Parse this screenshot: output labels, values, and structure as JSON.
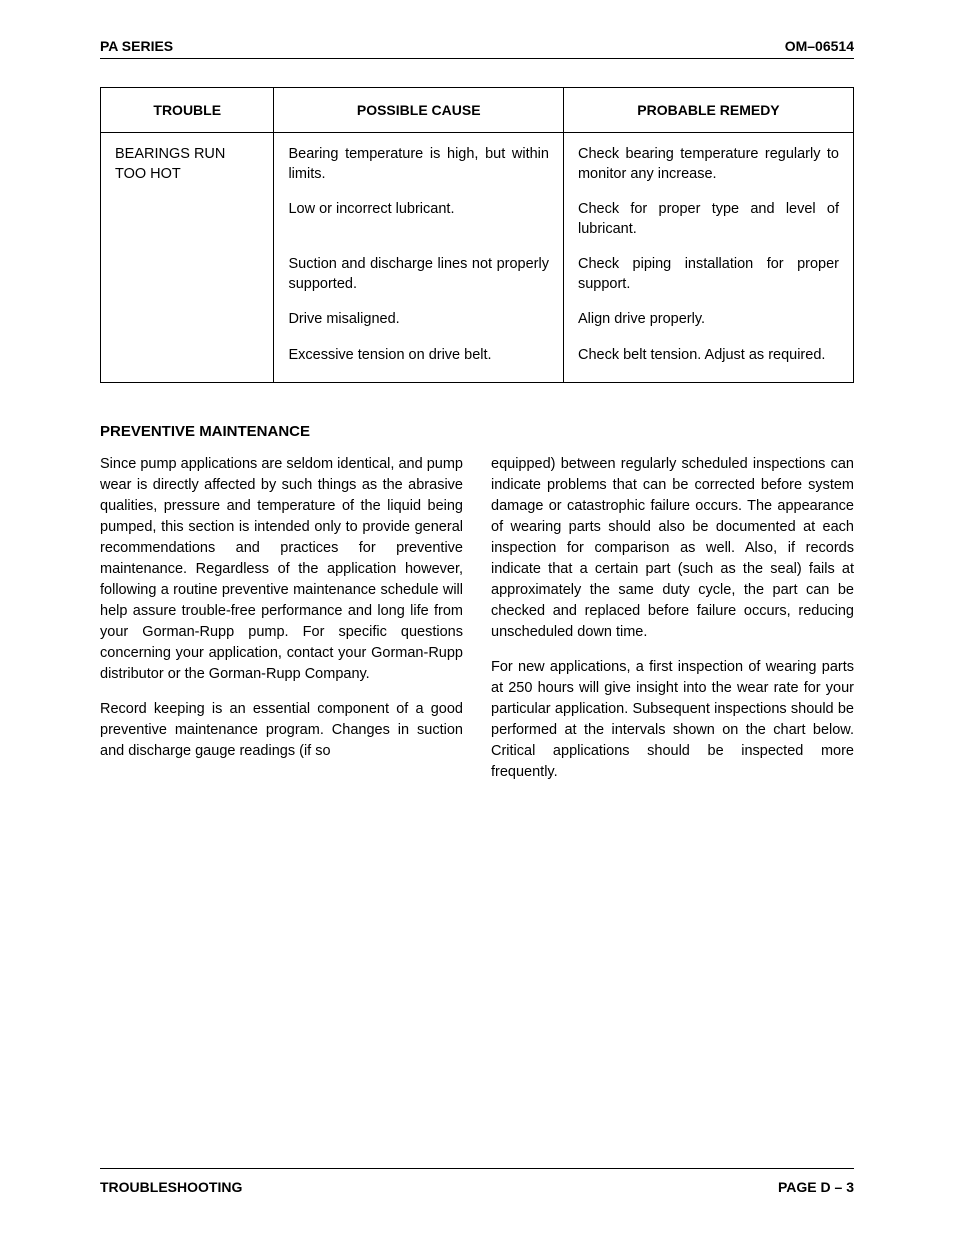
{
  "header": {
    "left": "PA SERIES",
    "right": "OM–06514"
  },
  "table": {
    "columns": [
      "TROUBLE",
      "POSSIBLE CAUSE",
      "PROBABLE REMEDY"
    ],
    "trouble": "BEARINGS RUN TOO HOT",
    "rows": [
      {
        "cause": "Bearing temperature is high, but within limits.",
        "remedy": "Check bearing temperature regularly to monitor any increase."
      },
      {
        "cause": "Low or incorrect lubricant.",
        "remedy": "Check for proper type and level of lubricant."
      },
      {
        "cause": "Suction and discharge lines not properly supported.",
        "remedy": "Check piping installation for proper support."
      },
      {
        "cause": "Drive misaligned.",
        "remedy": "Align drive properly."
      },
      {
        "cause": "Excessive tension on drive belt.",
        "remedy": "Check belt tension. Adjust as required."
      }
    ]
  },
  "section": {
    "title": "PREVENTIVE MAINTENANCE",
    "p1": "Since pump applications are seldom identical, and pump wear is directly affected by such things as the abrasive qualities, pressure and temperature of the liquid being pumped, this section is intended only to provide general recommendations and practices for preventive maintenance. Regardless of the application however, following a routine preventive maintenance schedule will help assure trouble-free performance and long life from your Gorman-Rupp pump. For specific questions concerning your application, contact your Gorman-Rupp distributor or the Gorman-Rupp Company.",
    "p2a": "Record keeping is an essential component of a good preventive maintenance program. Changes in suction and discharge gauge readings (if so",
    "p2b": "equipped) between regularly scheduled inspections can indicate problems that can be corrected before system damage or catastrophic failure occurs. The appearance of wearing parts should also be documented at each inspection for comparison as well. Also, if records indicate that a certain part (such as the seal) fails at approximately the same duty cycle, the part can be checked and replaced before failure occurs, reducing unscheduled down time.",
    "p3": "For new applications, a first inspection of wearing parts at 250 hours will give insight into the wear rate for your particular application. Subsequent inspections should be performed at the intervals shown on the chart below. Critical applications should be inspected more frequently."
  },
  "footer": {
    "left": "TROUBLESHOOTING",
    "right": "PAGE D – 3"
  }
}
